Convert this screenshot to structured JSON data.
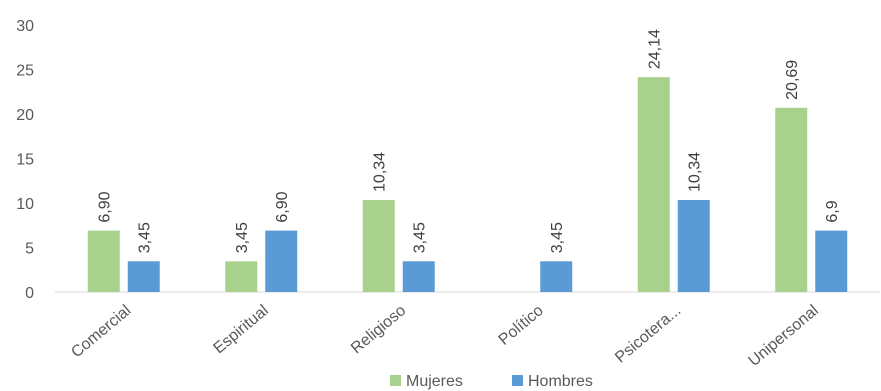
{
  "chart_data": {
    "type": "bar",
    "categories": [
      "Comercial",
      "Espiritual",
      "Religioso",
      "Político",
      "Psicotera...",
      "Unipersonal"
    ],
    "series": [
      {
        "name": "Mujeres",
        "color": "#a9d18e",
        "values": [
          6.9,
          3.45,
          10.34,
          null,
          24.14,
          20.69
        ],
        "labels": [
          "6,90",
          "3,45",
          "10,34",
          "",
          "24,14",
          "20,69"
        ]
      },
      {
        "name": "Hombres",
        "color": "#5b9bd5",
        "values": [
          3.45,
          6.9,
          3.45,
          3.45,
          10.34,
          6.9
        ],
        "labels": [
          "3,45",
          "6,90",
          "3,45",
          "3,45",
          "10,34",
          "6,9"
        ]
      }
    ],
    "yticks": [
      0,
      5,
      10,
      15,
      20,
      25,
      30
    ],
    "ylim": [
      0,
      30
    ],
    "grid": false,
    "legend": "bottom",
    "title": "",
    "xlabel": "",
    "ylabel": ""
  }
}
